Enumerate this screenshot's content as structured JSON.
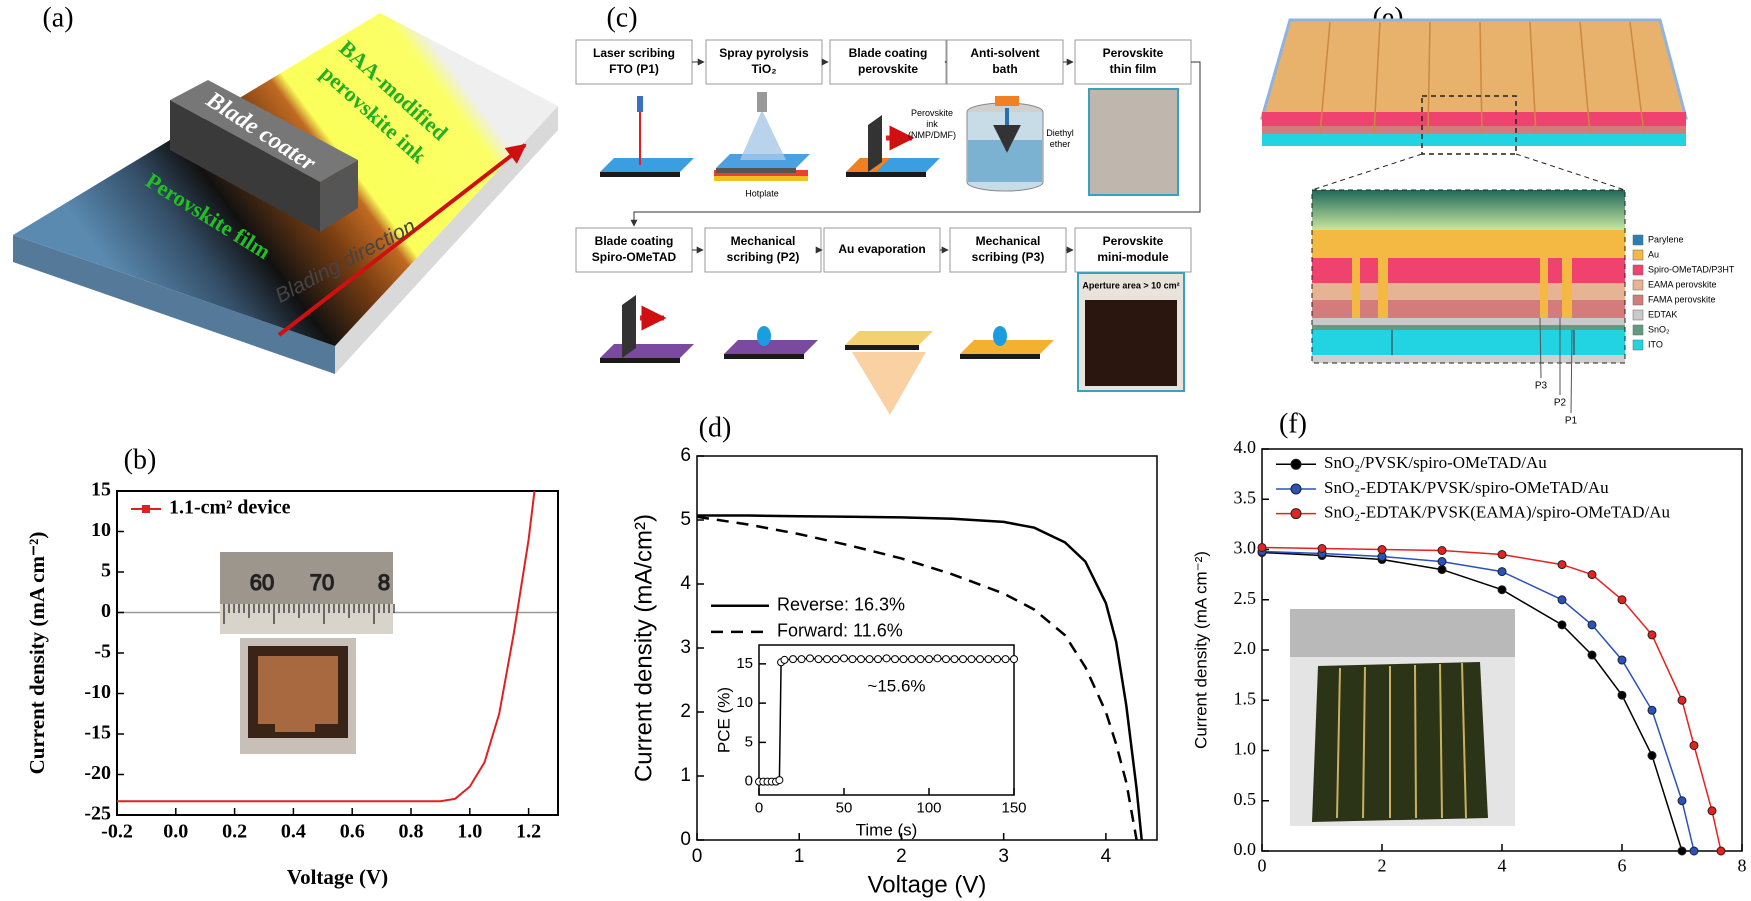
{
  "panel_a": {
    "label": "(a)",
    "coater": "Blade coater",
    "ink": [
      "BAA-modified",
      "perovskite ink"
    ],
    "film": "Perovskite film",
    "direction": "Blading direction"
  },
  "panel_c": {
    "label": "(c)",
    "steps": [
      [
        "Laser scribing",
        "FTO (P1)"
      ],
      [
        "Spray pyrolysis",
        "TiO₂"
      ],
      [
        "Blade coating",
        "perovskite"
      ],
      [
        "Anti-solvent",
        "bath"
      ],
      [
        "Perovskite",
        "thin film"
      ],
      [
        "Blade coating",
        "Spiro-OMeTAD"
      ],
      [
        "Mechanical",
        "scribing (P2)"
      ],
      [
        "Au evaporation"
      ],
      [
        "Mechanical",
        "scribing (P3)"
      ],
      [
        "Perovskite",
        "mini-module"
      ]
    ],
    "hotplate": "Hotplate",
    "ink": [
      "Perovskite",
      "ink",
      "(NMP/DMF)"
    ],
    "ether": [
      "Diethyl",
      "ether"
    ],
    "aperture": "Aperture area > 10 cm²"
  },
  "panel_e": {
    "label": "(e)",
    "legend": [
      {
        "name": "Parylene",
        "color": "#2a7fb5"
      },
      {
        "name": "Au",
        "color": "#f4b942"
      },
      {
        "name": "Spiro-OMeTAD/P3HT",
        "color": "#f0426e"
      },
      {
        "name": "EAMA perovskite",
        "color": "#e7b493"
      },
      {
        "name": "FAMA perovskite",
        "color": "#d47c7c"
      },
      {
        "name": "EDTAK",
        "color": "#c9c9c9"
      },
      {
        "name": "SnO₂",
        "color": "#5f9c80"
      },
      {
        "name": "ITO",
        "color": "#22d3e2"
      }
    ],
    "scribes": [
      "P3",
      "P2",
      "P1"
    ]
  },
  "chart_data": [
    {
      "type": "line",
      "panel_label": "(b)",
      "xlabel": "Voltage (V)",
      "ylabel": "Current density (mA cm⁻²)",
      "xlim": [
        -0.2,
        1.3
      ],
      "xticks": [
        -0.2,
        {
          "value": 0,
          "label": "0.0"
        },
        0.2,
        0.4,
        0.6,
        0.8,
        {
          "value": 1,
          "label": "1.0"
        },
        1.2
      ],
      "ylim": [
        -25,
        15
      ],
      "yticks": [
        -25,
        -20,
        -15,
        -10,
        -5,
        0,
        5,
        10,
        15
      ],
      "zero_line": true,
      "legend": "upper left",
      "legend_marker": "square",
      "x": [
        -0.2,
        0,
        0.2,
        0.4,
        0.6,
        0.8,
        0.9,
        0.95,
        1.0,
        1.05,
        1.1,
        1.15,
        1.2,
        1.22
      ],
      "series": [
        {
          "name": "1.1-cm² device",
          "color": "#e02020",
          "values": [
            -23.3,
            -23.3,
            -23.3,
            -23.3,
            -23.3,
            -23.3,
            -23.3,
            -23.0,
            -21.5,
            -18.5,
            -12.5,
            -2.5,
            9,
            15
          ]
        }
      ],
      "photo_text": [
        "60",
        "70",
        "8"
      ]
    },
    {
      "type": "line",
      "panel_label": "(d)",
      "xlabel": "Voltage (V)",
      "ylabel": "Current density (mA/cm²)",
      "xlim": [
        0,
        4.5
      ],
      "xticks": [
        0,
        1,
        2,
        3,
        4
      ],
      "ylim": [
        0,
        6
      ],
      "yticks": [
        0,
        1,
        2,
        3,
        4,
        5,
        6
      ],
      "legend": "center left",
      "x": [
        0,
        0.5,
        1,
        1.5,
        2,
        2.5,
        3,
        3.3,
        3.6,
        3.8,
        4.0,
        4.1,
        4.2,
        4.3,
        4.35
      ],
      "series": [
        {
          "name": "Reverse: 16.3%",
          "color": "#000000",
          "style": "solid",
          "values": [
            5.07,
            5.07,
            5.06,
            5.05,
            5.04,
            5.02,
            4.97,
            4.88,
            4.65,
            4.35,
            3.7,
            3.1,
            2.1,
            0.8,
            0
          ]
        },
        {
          "name": "Forward: 11.6%",
          "color": "#000000",
          "style": "dashed",
          "values": [
            5.05,
            4.93,
            4.78,
            4.6,
            4.4,
            4.15,
            3.85,
            3.6,
            3.2,
            2.7,
            2.0,
            1.5,
            0.9,
            0,
            null
          ]
        }
      ]
    },
    {
      "type": "line",
      "xlabel": "Time (s)",
      "ylabel": "PCE (%)",
      "annotation": "~15.6%",
      "xlim": [
        0,
        150
      ],
      "xticks": [
        0,
        50,
        100,
        150
      ],
      "ylim": [
        -1.7,
        17.4
      ],
      "yticks": [
        0,
        5,
        10,
        15
      ],
      "x": [
        0,
        2.5,
        5,
        7.5,
        10,
        12,
        13,
        15,
        20,
        25,
        30,
        35,
        40,
        45,
        50,
        55,
        60,
        65,
        70,
        75,
        80,
        85,
        90,
        95,
        100,
        105,
        110,
        115,
        120,
        125,
        130,
        135,
        140,
        145,
        150
      ],
      "series": [
        {
          "name": "PCE",
          "color": "#000000",
          "style": "solid",
          "marker": "circle",
          "marker_fill": "#ffffff",
          "values": [
            0,
            0,
            0,
            0,
            0,
            0.2,
            15.2,
            15.5,
            15.6,
            15.6,
            15.7,
            15.6,
            15.6,
            15.6,
            15.7,
            15.6,
            15.6,
            15.6,
            15.6,
            15.7,
            15.6,
            15.6,
            15.6,
            15.6,
            15.6,
            15.7,
            15.6,
            15.6,
            15.6,
            15.6,
            15.6,
            15.6,
            15.6,
            15.6,
            15.6
          ]
        }
      ]
    },
    {
      "type": "line",
      "panel_label": "(f)",
      "ylabel": "Current density (mA cm⁻²)",
      "xlim": [
        0,
        8
      ],
      "xticks": [
        0,
        2,
        4,
        6,
        8
      ],
      "ylim": [
        0,
        4
      ],
      "yticks": [
        {
          "value": 0,
          "label": "0.0"
        },
        0.5,
        {
          "value": 1,
          "label": "1.0"
        },
        1.5,
        {
          "value": 2,
          "label": "2.0"
        },
        2.5,
        {
          "value": 3,
          "label": "3.0"
        },
        3.5,
        {
          "value": 4,
          "label": "4.0"
        }
      ],
      "legend": "upper left",
      "x": [
        0,
        1,
        2,
        3,
        4,
        5,
        5.5,
        6,
        6.5,
        7,
        7.2,
        7.5,
        7.65
      ],
      "series": [
        {
          "name": "SnO₂/PVSK/spiro-OMeTAD/Au",
          "color": "#000000",
          "style": "solid",
          "marker": "circle",
          "values": [
            2.97,
            2.94,
            2.9,
            2.8,
            2.6,
            2.25,
            1.95,
            1.55,
            0.95,
            0,
            null,
            null,
            null
          ]
        },
        {
          "name": "SnO₂-EDTAK/PVSK/spiro-OMeTAD/Au",
          "color": "#2a52be",
          "style": "solid",
          "marker": "circle",
          "values": [
            2.98,
            2.96,
            2.93,
            2.88,
            2.78,
            2.5,
            2.25,
            1.9,
            1.4,
            0.5,
            0,
            null,
            null
          ]
        },
        {
          "name": "SnO₂-EDTAK/PVSK(EAMA)/spiro-OMeTAD/Au",
          "color": "#e82020",
          "style": "solid",
          "marker": "circle",
          "values": [
            3.02,
            3.01,
            3.0,
            2.99,
            2.95,
            2.85,
            2.75,
            2.5,
            2.15,
            1.5,
            1.05,
            0.4,
            0
          ]
        }
      ]
    }
  ]
}
